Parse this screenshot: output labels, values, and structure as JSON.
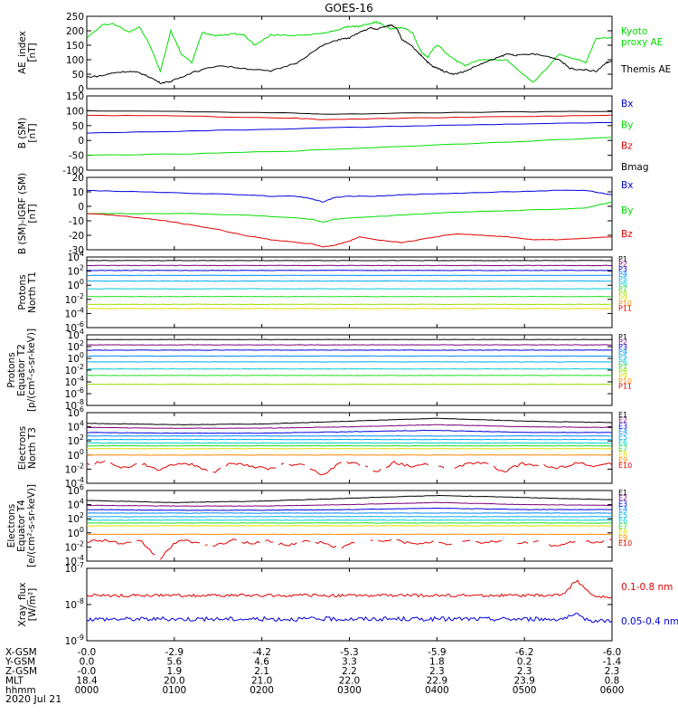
{
  "title": "GOES-16",
  "date_label": "2020 Jul 21",
  "colors": {
    "green": "#00dd00",
    "black": "#000000",
    "red": "#e00000",
    "blue": "#0000dd"
  },
  "chart_data": [
    {
      "id": "ae",
      "type": "line",
      "ylabel": [
        "AE_index",
        "[nT]"
      ],
      "ylim": [
        0,
        250
      ],
      "scale": "linear",
      "ticks": [
        0,
        50,
        100,
        150,
        200,
        250
      ],
      "tick_labels": [
        "0",
        "50",
        "100",
        "150",
        "200",
        "250"
      ],
      "series": [
        {
          "name": "Kyoto proxy AE",
          "label_lines": [
            "Kyoto",
            "proxy AE"
          ],
          "color": "#00dd00",
          "x": [
            0,
            0.03,
            0.05,
            0.08,
            0.1,
            0.12,
            0.14,
            0.16,
            0.18,
            0.2,
            0.22,
            0.24,
            0.26,
            0.28,
            0.3,
            0.32,
            0.35,
            0.4,
            0.45,
            0.48,
            0.5,
            0.52,
            0.54,
            0.55,
            0.56,
            0.57,
            0.58,
            0.59,
            0.6,
            0.62,
            0.63,
            0.64,
            0.65,
            0.66,
            0.67,
            0.68,
            0.7,
            0.72,
            0.75,
            0.8,
            0.85,
            0.9,
            0.95,
            0.97,
            1.0
          ],
          "values": [
            175,
            220,
            225,
            195,
            215,
            150,
            60,
            200,
            120,
            90,
            195,
            185,
            185,
            190,
            185,
            150,
            185,
            185,
            190,
            205,
            215,
            215,
            225,
            230,
            225,
            215,
            205,
            210,
            210,
            195,
            150,
            120,
            110,
            140,
            150,
            130,
            100,
            80,
            100,
            100,
            20,
            120,
            90,
            175,
            175
          ]
        },
        {
          "name": "Themis AE",
          "label_lines": [
            "Themis AE"
          ],
          "color": "#000000",
          "x": [
            0,
            0.03,
            0.05,
            0.08,
            0.1,
            0.12,
            0.14,
            0.16,
            0.18,
            0.2,
            0.25,
            0.3,
            0.35,
            0.4,
            0.45,
            0.48,
            0.5,
            0.52,
            0.54,
            0.55,
            0.57,
            0.58,
            0.59,
            0.6,
            0.62,
            0.63,
            0.64,
            0.65,
            0.66,
            0.67,
            0.68,
            0.7,
            0.72,
            0.75,
            0.78,
            0.8,
            0.82,
            0.85,
            0.88,
            0.9,
            0.92,
            0.95,
            0.97,
            0.99,
            1.0
          ],
          "values": [
            40,
            45,
            55,
            60,
            55,
            40,
            20,
            25,
            40,
            55,
            80,
            70,
            60,
            90,
            150,
            170,
            175,
            195,
            210,
            205,
            215,
            220,
            210,
            170,
            145,
            125,
            110,
            90,
            75,
            70,
            60,
            50,
            60,
            85,
            105,
            120,
            115,
            120,
            110,
            100,
            70,
            65,
            60,
            90,
            95
          ]
        }
      ]
    },
    {
      "id": "b_sm",
      "type": "line",
      "ylabel": [
        "B (SM)",
        "[nT]"
      ],
      "ylim": [
        -100,
        150
      ],
      "scale": "linear",
      "ticks": [
        -100,
        -50,
        0,
        50,
        100,
        150
      ],
      "tick_labels": [
        "-100",
        "-50",
        "0",
        "50",
        "100",
        "150"
      ],
      "series": [
        {
          "name": "Bx",
          "color": "#0000dd",
          "x": [
            0,
            0.2,
            0.4,
            0.6,
            0.8,
            1.0
          ],
          "values": [
            25,
            32,
            40,
            48,
            55,
            60
          ]
        },
        {
          "name": "By",
          "color": "#00dd00",
          "x": [
            0,
            0.2,
            0.4,
            0.6,
            0.8,
            1.0
          ],
          "values": [
            -50,
            -45,
            -35,
            -20,
            -5,
            10
          ]
        },
        {
          "name": "Bz",
          "color": "#e00000",
          "x": [
            0,
            0.2,
            0.4,
            0.45,
            0.6,
            0.8,
            1.0
          ],
          "values": [
            85,
            82,
            75,
            70,
            75,
            80,
            85
          ]
        },
        {
          "name": "Bmag",
          "color": "#000000",
          "x": [
            0,
            0.2,
            0.4,
            0.45,
            0.6,
            0.8,
            1.0
          ],
          "values": [
            100,
            97,
            92,
            88,
            92,
            96,
            98
          ]
        }
      ]
    },
    {
      "id": "b_igrf",
      "type": "line",
      "ylabel": [
        "B (SM)-IGRF (SM)",
        "[nT]"
      ],
      "ylim": [
        -30,
        20
      ],
      "scale": "linear",
      "ticks": [
        -30,
        -20,
        -10,
        0,
        10,
        20
      ],
      "tick_labels": [
        "-30",
        "-20",
        "-10",
        "0",
        "10",
        "20"
      ],
      "series": [
        {
          "name": "Bx",
          "color": "#0000dd",
          "x": [
            0,
            0.1,
            0.2,
            0.3,
            0.35,
            0.4,
            0.43,
            0.45,
            0.47,
            0.5,
            0.55,
            0.6,
            0.7,
            0.8,
            0.9,
            0.95,
            1.0
          ],
          "values": [
            11,
            10,
            9,
            8,
            7,
            7,
            5,
            3,
            6,
            7,
            7,
            8,
            9,
            10,
            11,
            11,
            8
          ]
        },
        {
          "name": "By",
          "color": "#00dd00",
          "x": [
            0,
            0.1,
            0.2,
            0.3,
            0.4,
            0.43,
            0.45,
            0.47,
            0.5,
            0.55,
            0.6,
            0.7,
            0.8,
            0.9,
            0.95,
            1.0
          ],
          "values": [
            -5,
            -5,
            -5,
            -6,
            -8,
            -9,
            -11,
            -9,
            -8,
            -7,
            -6,
            -4,
            -3,
            -2,
            -1,
            3
          ]
        },
        {
          "name": "Bz",
          "color": "#e00000",
          "x": [
            0,
            0.05,
            0.1,
            0.15,
            0.2,
            0.25,
            0.3,
            0.35,
            0.4,
            0.43,
            0.45,
            0.47,
            0.5,
            0.52,
            0.55,
            0.6,
            0.65,
            0.7,
            0.75,
            0.8,
            0.85,
            0.9,
            0.95,
            1.0
          ],
          "values": [
            -5,
            -6,
            -8,
            -10,
            -13,
            -16,
            -20,
            -23,
            -25,
            -26,
            -28,
            -27,
            -24,
            -21,
            -23,
            -25,
            -22,
            -19,
            -20,
            -21,
            -23,
            -23,
            -22,
            -21
          ]
        }
      ]
    },
    {
      "id": "protons_t1",
      "type": "line",
      "ylabel": [
        "Protons",
        "North T1"
      ],
      "ylim": [
        -6,
        4
      ],
      "scale": "log10",
      "ticks": [
        -6,
        -4,
        -2,
        0,
        2,
        4
      ],
      "tick_labels": [
        "10-6",
        "10-4",
        "10-2",
        "100",
        "102",
        "104"
      ],
      "legend_step": 0.07,
      "series": [
        {
          "name": "P1",
          "color": "#000000",
          "values": [
            3.5,
            3.5
          ]
        },
        {
          "name": "P2",
          "color": "#7a007a",
          "values": [
            2.8,
            2.8
          ]
        },
        {
          "name": "P3",
          "color": "#0000dd",
          "values": [
            2.1,
            2.1
          ]
        },
        {
          "name": "P4",
          "color": "#0088ff",
          "values": [
            1.4,
            1.4
          ]
        },
        {
          "name": "P5",
          "color": "#00aaee",
          "values": [
            0.6,
            0.6
          ]
        },
        {
          "name": "P6",
          "color": "#00cccc",
          "values": [
            -0.5,
            -0.5
          ]
        },
        {
          "name": "P7",
          "color": "#22dd22",
          "values": [
            -1.6,
            -1.6
          ]
        },
        {
          "name": "P8",
          "color": "#99dd00",
          "values": [
            -2.7,
            -2.7
          ]
        },
        {
          "name": "P9",
          "color": "#dddd00",
          "values": [
            -3.3,
            -3.3
          ]
        },
        {
          "name": "P10",
          "color": "#ff8800",
          "values": []
        },
        {
          "name": "P11",
          "color": "#e00000",
          "values": []
        }
      ]
    },
    {
      "id": "protons_t2",
      "type": "line",
      "ylabel": [
        "Protons",
        "Equator T2",
        "[p/(cm²-s-sr-keV)]"
      ],
      "ylim": [
        -8,
        4
      ],
      "scale": "log10",
      "ticks": [
        -8,
        -6,
        -4,
        -2,
        0,
        2,
        4
      ],
      "tick_labels": [
        "10-8",
        "10-6",
        "10-4",
        "10-2",
        "100",
        "102",
        "104"
      ],
      "legend_step": 0.07,
      "series": [
        {
          "name": "P1",
          "color": "#000000",
          "values": [
            3.2,
            3.2
          ]
        },
        {
          "name": "P2",
          "color": "#7a007a",
          "values": [
            2.3,
            2.3
          ]
        },
        {
          "name": "P3",
          "color": "#0000dd",
          "values": [
            1.4,
            1.4
          ]
        },
        {
          "name": "P4",
          "color": "#0088ff",
          "values": [
            0.4,
            0.4
          ]
        },
        {
          "name": "P5",
          "color": "#00aaee",
          "values": [
            -0.6,
            -0.6
          ]
        },
        {
          "name": "P6",
          "color": "#00cccc",
          "values": [
            -1.8,
            -1.8
          ]
        },
        {
          "name": "P7",
          "color": "#22dd22",
          "values": [
            -2.9,
            -2.9
          ]
        },
        {
          "name": "P8",
          "color": "#99dd00",
          "values": [
            -4.4,
            -4.4
          ]
        },
        {
          "name": "P9",
          "color": "#dddd00",
          "values": []
        },
        {
          "name": "P10",
          "color": "#ff8800",
          "values": []
        },
        {
          "name": "P11",
          "color": "#e00000",
          "values": []
        }
      ]
    },
    {
      "id": "electrons_t3",
      "type": "line",
      "ylabel": [
        "Electrons",
        "North T3"
      ],
      "ylim": [
        -4,
        6
      ],
      "scale": "log10",
      "ticks": [
        -4,
        -2,
        0,
        2,
        4,
        6
      ],
      "tick_labels": [
        "10-4",
        "10-2",
        "100",
        "102",
        "104",
        "106"
      ],
      "legend_step": 0.08,
      "series": [
        {
          "name": "E1",
          "color": "#000000",
          "values": [
            4.5,
            4.3,
            4.4,
            4.8,
            5.2,
            4.8,
            4.6
          ]
        },
        {
          "name": "E2",
          "color": "#7a007a",
          "values": [
            3.9,
            3.8,
            3.8,
            4.0,
            4.3,
            4.0,
            3.9
          ]
        },
        {
          "name": "E3",
          "color": "#0000dd",
          "values": [
            3.2,
            3.1,
            3.1,
            3.3,
            3.5,
            3.2,
            3.2
          ]
        },
        {
          "name": "E4",
          "color": "#0088ff",
          "values": [
            2.7,
            2.7
          ]
        },
        {
          "name": "E5",
          "color": "#00aaee",
          "values": [
            2.2,
            2.2
          ]
        },
        {
          "name": "E6",
          "color": "#00cccc",
          "values": [
            1.7,
            1.7
          ]
        },
        {
          "name": "E7",
          "color": "#22dd22",
          "values": [
            1.3,
            1.3
          ]
        },
        {
          "name": "E8",
          "color": "#dddd00",
          "values": [
            0.9,
            0.9
          ]
        },
        {
          "name": "E9",
          "color": "#ff8800",
          "values": [
            0.0,
            0.0
          ]
        },
        {
          "name": "E10",
          "color": "#e00000",
          "values": [
            -1.3,
            -1.0,
            -1.8,
            -1.2,
            -2.2,
            -1.1,
            -1.4,
            -2.6,
            -1.0,
            -1.6,
            -2.0,
            -1.2,
            -1.5,
            -2.8,
            -1.1,
            -1.3,
            -2.4,
            -1.0,
            -1.7,
            -1.2,
            -2.1,
            -1.3,
            -1.0,
            -2.5,
            -1.2,
            -1.4,
            -1.9,
            -1.1,
            -1.6,
            -1.2
          ]
        }
      ]
    },
    {
      "id": "electrons_t4",
      "type": "line",
      "ylabel": [
        "Electrons",
        "Equator T4",
        "[e/(cm²-s-sr-keV)]"
      ],
      "ylim": [
        -4,
        6
      ],
      "scale": "log10",
      "ticks": [
        -4,
        -2,
        0,
        2,
        4,
        6
      ],
      "tick_labels": [
        "10-4",
        "10-2",
        "100",
        "102",
        "104",
        "106"
      ],
      "legend_step": 0.08,
      "series": [
        {
          "name": "E1",
          "color": "#000000",
          "values": [
            4.6,
            4.3,
            4.5,
            4.9,
            5.3,
            5.0,
            4.7
          ]
        },
        {
          "name": "E2",
          "color": "#7a007a",
          "values": [
            3.9,
            3.8,
            3.8,
            4.0,
            4.3,
            4.0,
            3.9
          ]
        },
        {
          "name": "E3",
          "color": "#0000dd",
          "values": [
            3.3,
            3.2,
            3.2,
            3.3,
            3.5,
            3.3,
            3.3
          ]
        },
        {
          "name": "E4",
          "color": "#0088ff",
          "values": [
            2.8,
            2.8
          ]
        },
        {
          "name": "E5",
          "color": "#00aaee",
          "values": [
            2.3,
            2.3
          ]
        },
        {
          "name": "E6",
          "color": "#00cccc",
          "values": [
            1.8,
            1.8
          ]
        },
        {
          "name": "E7",
          "color": "#22dd22",
          "values": [
            1.4,
            1.4
          ]
        },
        {
          "name": "E8",
          "color": "#dddd00",
          "values": [
            1.0,
            1.0
          ]
        },
        {
          "name": "E9",
          "color": "#ff8800",
          "values": [
            -0.2,
            -0.2
          ]
        },
        {
          "name": "E10",
          "color": "#e00000",
          "values": [
            -1.2,
            -1.0,
            -1.6,
            -1.2,
            -3.8,
            -1.1,
            -1.3,
            -2.0,
            -1.0,
            -1.5,
            -1.1,
            -1.8,
            -1.2,
            -1.4,
            -2.2,
            -1.1,
            -1.3,
            -1.0,
            -1.6,
            -1.2,
            -1.8,
            -1.1,
            -1.4,
            -1.0,
            -1.5,
            -1.2,
            -2.0,
            -1.1,
            -1.3,
            -1.1
          ]
        }
      ]
    },
    {
      "id": "xray",
      "type": "line",
      "ylabel": [
        "Xray_flux",
        "[W/m²]"
      ],
      "ylim": [
        -9,
        -7
      ],
      "scale": "log10",
      "ticks": [
        -9,
        -8,
        -7
      ],
      "tick_labels": [
        "10-9",
        "10-8",
        "10-7"
      ],
      "series": [
        {
          "name": "0.1-0.8 nm",
          "color": "#e00000",
          "level": -7.75,
          "noise": 0.04,
          "bump_x": 0.935,
          "bump_h": 0.4
        },
        {
          "name": "0.05-0.4 nm",
          "color": "#0000dd",
          "level": -8.4,
          "noise": 0.06,
          "bump_x": 0.935,
          "bump_h": 0.1
        }
      ]
    }
  ],
  "x_axis": {
    "ticks": [
      0,
      0.1667,
      0.3333,
      0.5,
      0.6667,
      0.8333,
      1.0
    ],
    "rows": [
      {
        "label": "X-GSM",
        "values": [
          "-0.0",
          "-2.9",
          "-4.2",
          "-5.3",
          "-5.9",
          "-6.2",
          "-6.0"
        ]
      },
      {
        "label": "Y-GSM",
        "values": [
          "0.0",
          "5.6",
          "4.6",
          "3.3",
          "1.8",
          "0.2",
          "-1.4"
        ]
      },
      {
        "label": "Z-GSM",
        "values": [
          "-0.0",
          "1.9",
          "2.1",
          "2.2",
          "2.3",
          "2.3",
          "2.3"
        ]
      },
      {
        "label": "MLT",
        "values": [
          "18.4",
          "20.0",
          "21.0",
          "22.0",
          "22.9",
          "23.9",
          "0.8"
        ]
      },
      {
        "label": "hhmm",
        "values": [
          "0000",
          "0100",
          "0200",
          "0300",
          "0400",
          "0500",
          "0600"
        ]
      }
    ]
  }
}
